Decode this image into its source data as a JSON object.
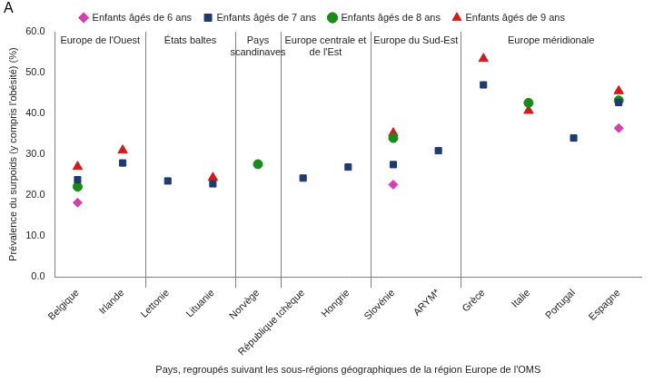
{
  "chart_data": {
    "type": "scatter",
    "panel_label": "A",
    "x_label": "Pays, regroupés suivant les sous-régions géographiques de la région Europe de l'OMS",
    "y_label": "Prévalence du surpoids (y compris l'obésité) (%)",
    "categories": [
      "Belgique",
      "Irlande",
      "Lettonie",
      "Lituanie",
      "Norvège",
      "République tchèque",
      "Hongrie",
      "Slovénie",
      "ARYM*",
      "Grèce",
      "Italie",
      "Portugal",
      "Espagne"
    ],
    "regions": [
      {
        "name": "Europe de l'Ouest",
        "categories": [
          "Belgique",
          "Irlande"
        ]
      },
      {
        "name": "États baltes",
        "categories": [
          "Lettonie",
          "Lituanie"
        ]
      },
      {
        "name": "Pays scandinaves",
        "categories": [
          "Norvège"
        ]
      },
      {
        "name": "Europe centrale et de l'Est",
        "categories": [
          "République tchèque",
          "Hongrie"
        ]
      },
      {
        "name": "Europe du Sud-Est",
        "categories": [
          "Slovénie",
          "ARYM*"
        ]
      },
      {
        "name": "Europe méridionale",
        "categories": [
          "Grèce",
          "Italie",
          "Portugal",
          "Espagne"
        ]
      }
    ],
    "series": [
      {
        "name": "Enfants âgés de 6 ans",
        "color": "#d63fae",
        "marker": "diamond",
        "values": [
          18.2,
          null,
          null,
          null,
          null,
          null,
          null,
          22.6,
          null,
          null,
          null,
          null,
          36.4
        ]
      },
      {
        "name": "Enfants âgés de 7 ans",
        "color": "#1f3a6e",
        "marker": "square",
        "values": [
          23.8,
          27.9,
          23.5,
          22.8,
          null,
          24.2,
          26.9,
          27.5,
          30.9,
          47.0,
          null,
          34.0,
          42.7
        ]
      },
      {
        "name": "Enfants âgés de 8 ans",
        "color": "#1a8a1a",
        "marker": "circle",
        "values": [
          22.1,
          null,
          null,
          null,
          27.6,
          null,
          null,
          34.0,
          null,
          null,
          42.6,
          null,
          43.2
        ]
      },
      {
        "name": "Enfants âgés de 9 ans",
        "color": "#d01c1c",
        "marker": "triangle",
        "values": [
          27.0,
          31.0,
          null,
          24.3,
          null,
          null,
          null,
          35.2,
          null,
          53.4,
          40.7,
          null,
          45.5
        ]
      }
    ],
    "ylim": [
      0,
      60
    ],
    "yticks": [
      {
        "value": 0,
        "label": "0.0"
      },
      {
        "value": 10,
        "label": "10.0"
      },
      {
        "value": 20,
        "label": "20.0"
      },
      {
        "value": 30,
        "label": "30.0"
      },
      {
        "value": 40,
        "label": "40.0"
      },
      {
        "value": 50,
        "label": "50.0"
      },
      {
        "value": 60,
        "label": "60.0"
      }
    ],
    "grid": false,
    "legend": "top"
  }
}
